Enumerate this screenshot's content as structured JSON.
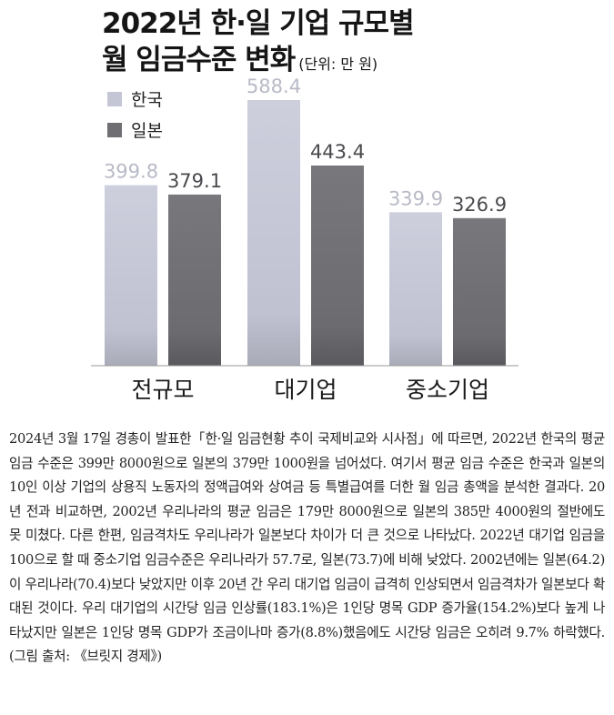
{
  "title": {
    "line1": "2022년 한·일 기업 규모별",
    "line2": "월 임금수준 변화",
    "unit": "(단위: 만 원)"
  },
  "chart_data": {
    "type": "bar",
    "categories": [
      "전규모",
      "대기업",
      "중소기업"
    ],
    "series": [
      {
        "name": "한국",
        "values": [
          399.8,
          588.4,
          339.9
        ],
        "color": "#c4c6d6",
        "label_color": "#b8bac6"
      },
      {
        "name": "일본",
        "values": [
          379.1,
          443.4,
          326.9
        ],
        "color": "#6f6f73",
        "label_color": "#4a4a4e"
      }
    ],
    "ylim": [
      0,
      620
    ],
    "legend_position": "top-left",
    "grid": false,
    "xlabel": "",
    "ylabel": ""
  },
  "article": {
    "text": "2024년 3월 17일 경총이 발표한「한·일 임금현황 추이 국제비교와 시사점」에 따르면, 2022년 한국의 평균 임금 수준은 399만 8000원으로 일본의 379만 1000원을 넘어섰다. 여기서 평균 임금 수준은 한국과 일본의 10인 이상 기업의 상용직 노동자의 정액급여와 상여금 등 특별급여를 더한 월 임금 총액을 분석한 결과다. 20년 전과 비교하면, 2002년 우리나라의 평균 임금은 179만 8000원으로 일본의 385만 4000원의 절반에도 못 미쳤다. 다른 한편, 임금격차도 우리나라가 일본보다 차이가 더 큰 것으로 나타났다. 2022년 대기업 임금을 100으로 할 때 중소기업 임금수준은 우리나라가 57.7로, 일본(73.7)에 비해 낮았다. 2002년에는 일본(64.2)이 우리나라(70.4)보다 낮았지만 이후 20년 간 우리 대기업 임금이 급격히 인상되면서 임금격차가 일본보다 확대된 것이다. 우리 대기업의 시간당 임금 인상률(183.1%)은 1인당 명목 GDP 증가율(154.2%)보다 높게 나타났지만 일본은 1인당 명목 GDP가 조금이나마 증가(8.8%)했음에도 시간당 임금은 오히려 9.7% 하락했다. (그림 출처: 《브릿지 경제》)"
  }
}
